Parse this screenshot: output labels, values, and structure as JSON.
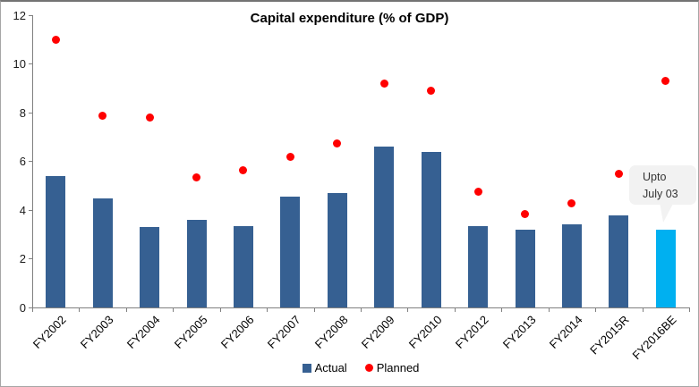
{
  "title": "Capital expenditure (% of GDP)",
  "chart_data": {
    "type": "bar",
    "title": "Capital expenditure (% of GDP)",
    "categories": [
      "FY2002",
      "FY2003",
      "FY2004",
      "FY2005",
      "FY2006",
      "FY2007",
      "FY2008",
      "FY2009",
      "FY2010",
      "FY2012",
      "FY2013",
      "FY2014",
      "FY2015R",
      "FY2016BE"
    ],
    "series": [
      {
        "name": "Actual",
        "type": "bar",
        "color": "#366092",
        "values": [
          5.4,
          4.5,
          3.3,
          3.6,
          3.35,
          4.55,
          4.7,
          6.6,
          6.4,
          3.35,
          3.2,
          3.4,
          3.8,
          3.2
        ]
      },
      {
        "name": "Planned",
        "type": "scatter",
        "color": "#ff0000",
        "values": [
          11.0,
          7.9,
          7.8,
          5.35,
          5.65,
          6.2,
          6.75,
          9.2,
          8.9,
          4.75,
          3.85,
          4.3,
          5.5,
          9.3
        ]
      }
    ],
    "highlight": {
      "category": "FY2016BE",
      "series": "Actual",
      "color": "#00b0f0"
    },
    "xlabel": "",
    "ylabel": "",
    "ylim": [
      0,
      12
    ],
    "yticks": [
      0,
      2,
      4,
      6,
      8,
      10,
      12
    ],
    "grid": false,
    "legend_position": "bottom"
  },
  "annotation": {
    "line1": "Upto",
    "line2": "July 03"
  },
  "colors": {
    "axis": "#808080",
    "callout_bg": "#f2f2f2",
    "border": "#a6a6a6"
  }
}
